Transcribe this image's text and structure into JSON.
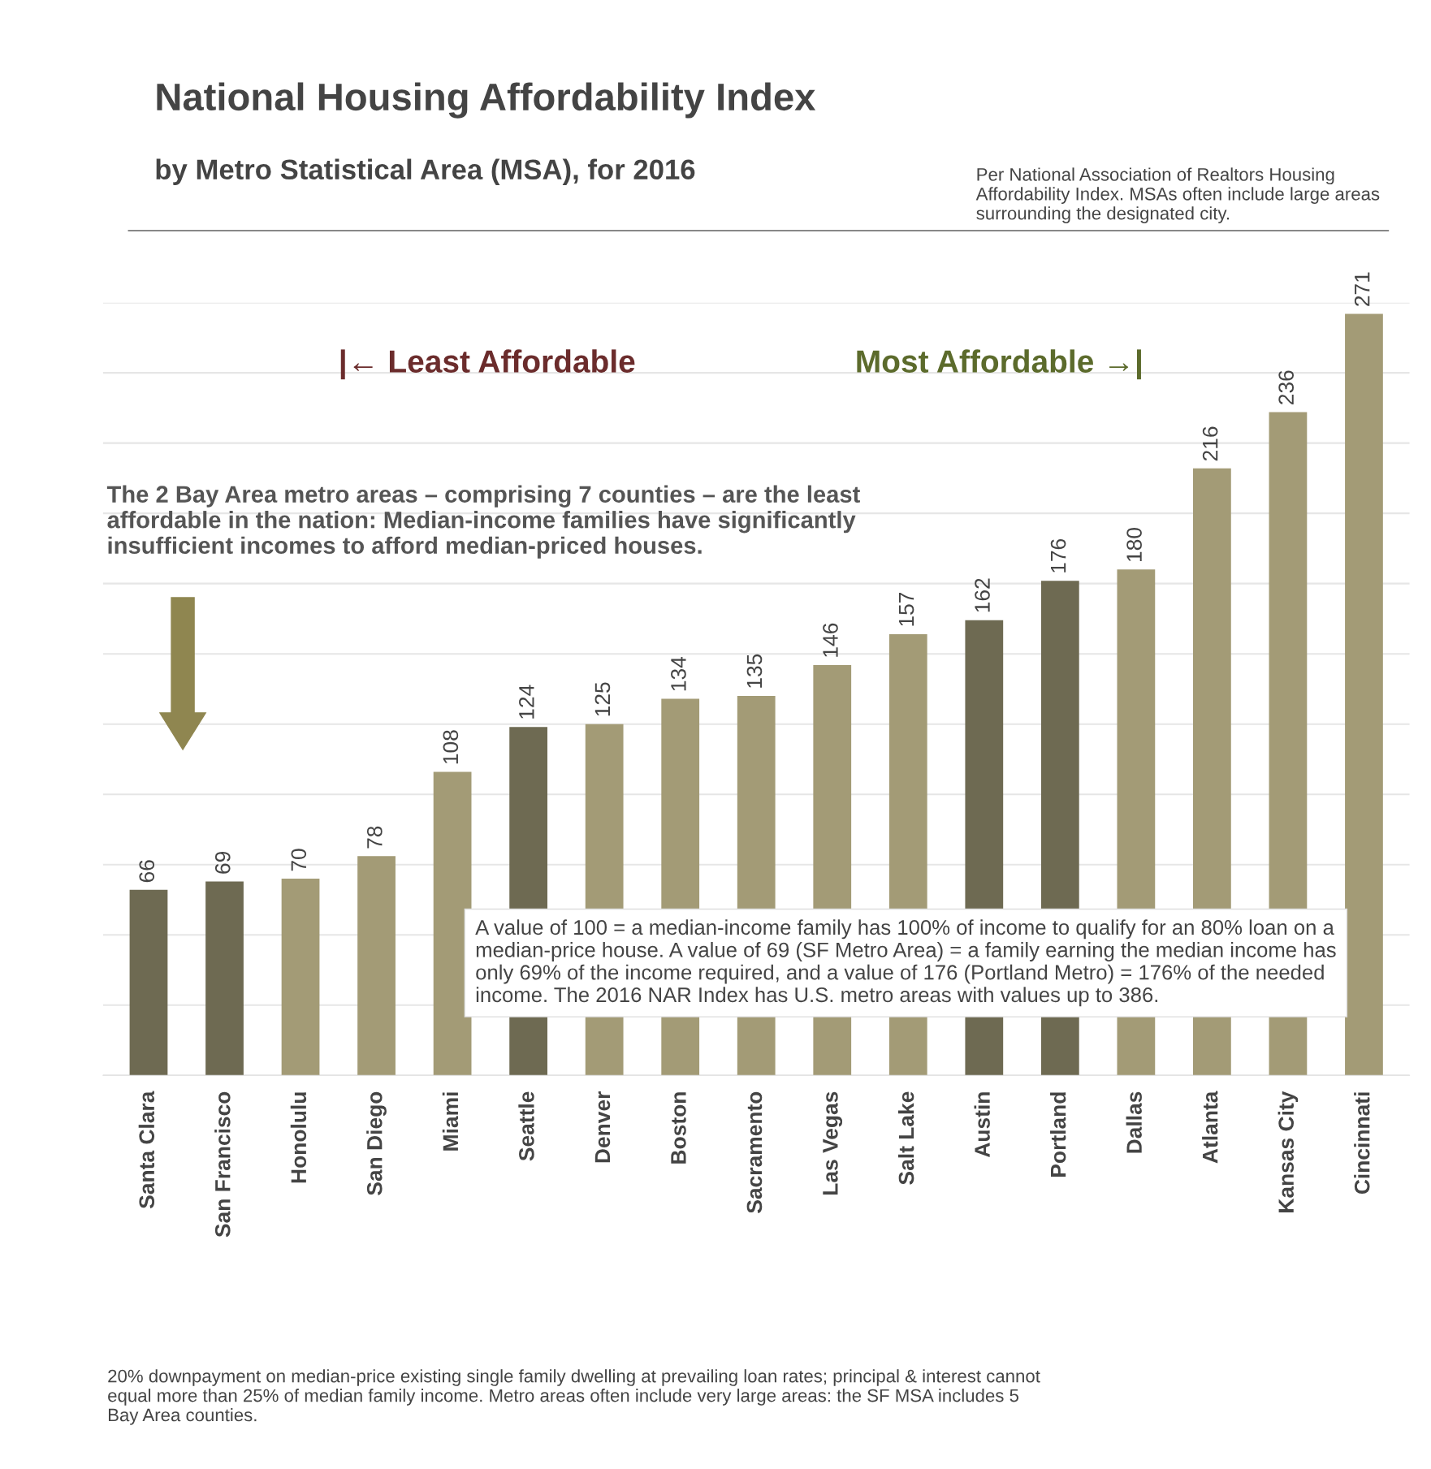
{
  "chart_data": {
    "type": "bar",
    "title": "National Housing Affordability Index",
    "subtitle": "by Metro Statistical Area (MSA), for 2016",
    "categories": [
      "Santa Clara",
      "San Francisco",
      "Honolulu",
      "San Diego",
      "Miami",
      "Seattle",
      "Denver",
      "Boston",
      "Sacramento",
      "Las Vegas",
      "Salt Lake",
      "Austin",
      "Portland",
      "Dallas",
      "Atlanta",
      "Kansas City",
      "Cincinnati"
    ],
    "values": [
      66,
      69,
      70,
      78,
      108,
      124,
      125,
      134,
      135,
      146,
      157,
      162,
      176,
      180,
      216,
      236,
      271
    ],
    "colors": [
      "#6e6a52",
      "#6e6a52",
      "#a39b76",
      "#a39b76",
      "#a39b76",
      "#6e6a52",
      "#a39b76",
      "#a39b76",
      "#a39b76",
      "#a39b76",
      "#a39b76",
      "#6e6a52",
      "#6e6a52",
      "#a39b76",
      "#a39b76",
      "#a39b76",
      "#a39b76"
    ],
    "data_labels": true,
    "ylim": [
      0,
      275
    ],
    "yticks": [
      {
        "value": 0,
        "label": null
      },
      {
        "value": 25,
        "label": null
      },
      {
        "value": 50,
        "label": null
      },
      {
        "value": 75,
        "label": null
      },
      {
        "value": 100,
        "label": null
      },
      {
        "value": 125,
        "label": null
      },
      {
        "value": 150,
        "label": null
      },
      {
        "value": 175,
        "label": null
      },
      {
        "value": 200,
        "label": null
      },
      {
        "value": 225,
        "label": null
      },
      {
        "value": 250,
        "label": null
      },
      {
        "value": 275,
        "label": null
      }
    ],
    "grid": "y",
    "annotations": [
      "Per National Association of Realtors Housing Affordability Index. MSAs often include large areas surrounding the designated city.",
      "|← Least Affordable",
      "Most Affordable →|",
      "The 2 Bay Area metro areas – comprising 7 counties – are the least affordable in the nation: Median-income families have significantly insufficient incomes to afford median-priced houses.",
      "A value of 100 = a median-income family has 100% of income to qualify for an 80% loan on a median-price house. A value of 69 (SF Metro Area) = a family earning the median income has only 69% of the income required, and a value of 176 (Portland Metro) = 176% of the needed income. The 2016 NAR Index has U.S. metro areas with values up to 386.",
      "20% downpayment on median-price existing single family dwelling at prevailing loan rates; principal & interest cannot equal more than 25% of median family income. Metro areas often include very large areas: the SF MSA includes 5 Bay Area counties."
    ]
  }
}
